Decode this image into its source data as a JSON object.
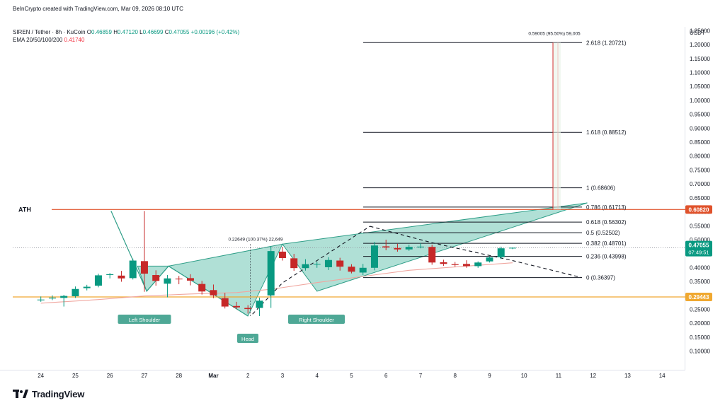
{
  "header": {
    "credit": "BeInCrypto created with TradingView.com, Mar 09, 2026 08:10 UTC",
    "symbol": "SIREN / Tether · 8h · KuCoin",
    "ohlc": {
      "o_label": "O",
      "o": "0.46859",
      "h_label": "H",
      "h": "0.47120",
      "l_label": "L",
      "l": "0.46699",
      "c_label": "C",
      "c": "0.47055",
      "change": "+0.00196 (+0.42%)"
    },
    "ema_label": "EMA 20/50/100/200",
    "ema_value": "0.41740"
  },
  "currency": "USDT",
  "brand": "TradingView",
  "colors": {
    "up": "#089981",
    "down": "#c62828",
    "ath_line": "#e0522b",
    "support_line": "#f0a830",
    "pattern_fill": "#8fd3c4",
    "pattern_stroke": "#2f9e88",
    "projection": "#d32f2f",
    "ema": "#f0a7a0"
  },
  "chart_data": {
    "type": "candlestick",
    "title": "SIREN / Tether · 8h · KuCoin",
    "ylim": [
      0.1,
      1.25
    ],
    "yticks": [
      "1.25000",
      "1.20000",
      "1.15000",
      "1.10000",
      "1.05000",
      "1.00000",
      "0.95000",
      "0.90000",
      "0.85000",
      "0.80000",
      "0.75000",
      "0.70000",
      "0.65000",
      "0.60000",
      "0.55000",
      "0.50000",
      "0.45000",
      "0.40000",
      "0.35000",
      "0.30000",
      "0.25000",
      "0.20000",
      "0.15000",
      "0.10000"
    ],
    "xticks": [
      {
        "label": "24",
        "pos": 0
      },
      {
        "label": "25",
        "pos": 3
      },
      {
        "label": "26",
        "pos": 6
      },
      {
        "label": "27",
        "pos": 9
      },
      {
        "label": "28",
        "pos": 12
      },
      {
        "label": "Mar",
        "pos": 15
      },
      {
        "label": "2",
        "pos": 18
      },
      {
        "label": "3",
        "pos": 21
      },
      {
        "label": "4",
        "pos": 24
      },
      {
        "label": "5",
        "pos": 27
      },
      {
        "label": "6",
        "pos": 30
      },
      {
        "label": "7",
        "pos": 33
      },
      {
        "label": "8",
        "pos": 36
      },
      {
        "label": "9",
        "pos": 39
      },
      {
        "label": "10",
        "pos": 42
      },
      {
        "label": "11",
        "pos": 45
      },
      {
        "label": "12",
        "pos": 48
      },
      {
        "label": "13",
        "pos": 51
      },
      {
        "label": "14",
        "pos": 54
      }
    ],
    "candles": [
      {
        "o": 0.283,
        "h": 0.296,
        "l": 0.277,
        "c": 0.285
      },
      {
        "o": 0.289,
        "h": 0.3,
        "l": 0.283,
        "c": 0.292
      },
      {
        "o": 0.291,
        "h": 0.302,
        "l": 0.26,
        "c": 0.298
      },
      {
        "o": 0.297,
        "h": 0.332,
        "l": 0.291,
        "c": 0.323
      },
      {
        "o": 0.326,
        "h": 0.338,
        "l": 0.318,
        "c": 0.331
      },
      {
        "o": 0.335,
        "h": 0.378,
        "l": 0.329,
        "c": 0.372
      },
      {
        "o": 0.373,
        "h": 0.38,
        "l": 0.361,
        "c": 0.376
      },
      {
        "o": 0.371,
        "h": 0.388,
        "l": 0.349,
        "c": 0.361
      },
      {
        "o": 0.362,
        "h": 0.432,
        "l": 0.357,
        "c": 0.425
      },
      {
        "o": 0.423,
        "h": 0.603,
        "l": 0.313,
        "c": 0.378
      },
      {
        "o": 0.373,
        "h": 0.39,
        "l": 0.335,
        "c": 0.352
      },
      {
        "o": 0.342,
        "h": 0.373,
        "l": 0.293,
        "c": 0.361
      },
      {
        "o": 0.36,
        "h": 0.37,
        "l": 0.34,
        "c": 0.358
      },
      {
        "o": 0.362,
        "h": 0.376,
        "l": 0.336,
        "c": 0.353
      },
      {
        "o": 0.341,
        "h": 0.352,
        "l": 0.303,
        "c": 0.314
      },
      {
        "o": 0.319,
        "h": 0.339,
        "l": 0.29,
        "c": 0.3
      },
      {
        "o": 0.29,
        "h": 0.309,
        "l": 0.253,
        "c": 0.26
      },
      {
        "o": 0.262,
        "h": 0.277,
        "l": 0.251,
        "c": 0.257
      },
      {
        "o": 0.255,
        "h": 0.265,
        "l": 0.235,
        "c": 0.251
      },
      {
        "o": 0.255,
        "h": 0.292,
        "l": 0.226,
        "c": 0.281
      },
      {
        "o": 0.3,
        "h": 0.476,
        "l": 0.255,
        "c": 0.459
      },
      {
        "o": 0.457,
        "h": 0.474,
        "l": 0.425,
        "c": 0.434
      },
      {
        "o": 0.433,
        "h": 0.449,
        "l": 0.388,
        "c": 0.398
      },
      {
        "o": 0.398,
        "h": 0.43,
        "l": 0.389,
        "c": 0.412
      },
      {
        "o": 0.412,
        "h": 0.421,
        "l": 0.399,
        "c": 0.413
      },
      {
        "o": 0.401,
        "h": 0.437,
        "l": 0.391,
        "c": 0.427
      },
      {
        "o": 0.425,
        "h": 0.435,
        "l": 0.389,
        "c": 0.403
      },
      {
        "o": 0.403,
        "h": 0.412,
        "l": 0.379,
        "c": 0.385
      },
      {
        "o": 0.382,
        "h": 0.413,
        "l": 0.373,
        "c": 0.399
      },
      {
        "o": 0.399,
        "h": 0.492,
        "l": 0.39,
        "c": 0.479
      },
      {
        "o": 0.476,
        "h": 0.5,
        "l": 0.462,
        "c": 0.472
      },
      {
        "o": 0.47,
        "h": 0.485,
        "l": 0.457,
        "c": 0.465
      },
      {
        "o": 0.465,
        "h": 0.482,
        "l": 0.46,
        "c": 0.474
      },
      {
        "o": 0.474,
        "h": 0.487,
        "l": 0.469,
        "c": 0.475
      },
      {
        "o": 0.474,
        "h": 0.482,
        "l": 0.41,
        "c": 0.418
      },
      {
        "o": 0.419,
        "h": 0.428,
        "l": 0.406,
        "c": 0.413
      },
      {
        "o": 0.412,
        "h": 0.42,
        "l": 0.403,
        "c": 0.409
      },
      {
        "o": 0.413,
        "h": 0.426,
        "l": 0.399,
        "c": 0.405
      },
      {
        "o": 0.405,
        "h": 0.422,
        "l": 0.399,
        "c": 0.418
      },
      {
        "o": 0.422,
        "h": 0.44,
        "l": 0.418,
        "c": 0.436
      },
      {
        "o": 0.437,
        "h": 0.475,
        "l": 0.43,
        "c": 0.469
      },
      {
        "o": 0.469,
        "h": 0.472,
        "l": 0.466,
        "c": 0.471
      }
    ],
    "fib_levels": [
      {
        "ratio": "2.618",
        "price": 1.20721,
        "label": "2.618 (1.20721)"
      },
      {
        "ratio": "1.618",
        "price": 0.88512,
        "label": "1.618 (0.88512)"
      },
      {
        "ratio": "1",
        "price": 0.68606,
        "label": "1 (0.68606)"
      },
      {
        "ratio": "0.786",
        "price": 0.61713,
        "label": "0.786 (0.61713)"
      },
      {
        "ratio": "0.618",
        "price": 0.56302,
        "label": "0.618 (0.56302)"
      },
      {
        "ratio": "0.5",
        "price": 0.52502,
        "label": "0.5 (0.52502)"
      },
      {
        "ratio": "0.382",
        "price": 0.48701,
        "label": "0.382 (0.48701)"
      },
      {
        "ratio": "0.236",
        "price": 0.43998,
        "label": "0.236 (0.43998)"
      },
      {
        "ratio": "0",
        "price": 0.36397,
        "label": "0 (0.36397)"
      }
    ],
    "ath": {
      "label": "ATH",
      "price": 0.6082,
      "tag": "0.60820"
    },
    "support": {
      "price": 0.29443,
      "tag": "0.29443"
    },
    "last_price": {
      "tag": "0.47055",
      "countdown": "07:49:51"
    },
    "ema_line": [
      {
        "i": 0,
        "v": 0.272
      },
      {
        "i": 5,
        "v": 0.285
      },
      {
        "i": 9,
        "v": 0.298
      },
      {
        "i": 13,
        "v": 0.305
      },
      {
        "i": 17,
        "v": 0.31
      },
      {
        "i": 20,
        "v": 0.322
      },
      {
        "i": 24,
        "v": 0.346
      },
      {
        "i": 28,
        "v": 0.368
      },
      {
        "i": 32,
        "v": 0.39
      },
      {
        "i": 36,
        "v": 0.402
      },
      {
        "i": 41,
        "v": 0.417
      }
    ],
    "pattern_labels": {
      "left": "Left Shoulder",
      "head": "Head",
      "right": "Right Shoulder"
    },
    "measure_label": "0.22649 (100.37%) 22,649",
    "target_label": "0.59005 (95.50%) 59,005"
  }
}
